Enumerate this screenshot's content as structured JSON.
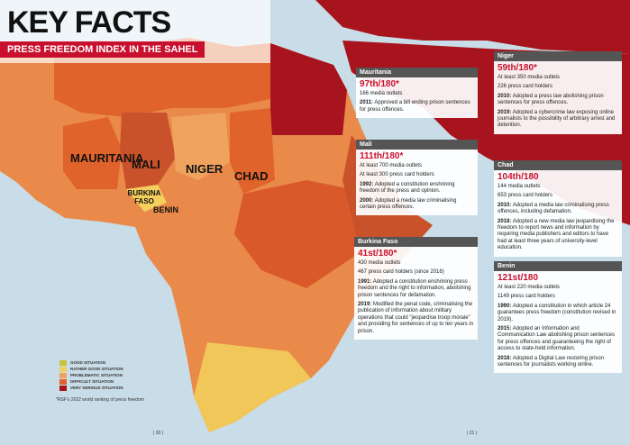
{
  "header": {
    "title": "KEY FACTS",
    "subtitle": "PRESS FREEDOM INDEX IN THE SAHEL"
  },
  "map_labels": [
    "MAURITANIA",
    "MALI",
    "NIGER",
    "CHAD",
    "BURKINA FASO",
    "BENIN"
  ],
  "legend": [
    "GOOD SITUATION",
    "RATHER GOOD SITUATION",
    "PROBLEMATIC SITUATION",
    "DIFFICULT SITUATION",
    "VERY SERIOUS SITUATION"
  ],
  "footnote": "*RSF's 2022 world ranking of press freedom",
  "page_numbers": [
    "| 20 |",
    "| 21 |"
  ],
  "cards": [
    {
      "country": "Mauritania",
      "rank": "97th/180*",
      "facts": [
        "166 media outlets"
      ],
      "events": [
        {
          "year": "2011:",
          "text": "Approved a bill ending prison sentences for press offences."
        }
      ]
    },
    {
      "country": "Mali",
      "rank": "111th/180*",
      "facts": [
        "At least 700 media outlets",
        "At least 300 press card holders"
      ],
      "events": [
        {
          "year": "1992:",
          "text": "Adopted a constitution enshrining freedom of the press and opinion."
        },
        {
          "year": "2000:",
          "text": "Adopted a media law criminalising certain press offences."
        }
      ]
    },
    {
      "country": "Burkina Faso",
      "rank": "41st/180*",
      "facts": [
        "430 media outlets",
        "467 press card holders (since 2016)"
      ],
      "events": [
        {
          "year": "1991:",
          "text": "Adopted a constitution enshrining press freedom and the right to information, abolishing prison sentences for defamation."
        },
        {
          "year": "2019:",
          "text": "Modified the penal code, criminalising the publication of information about military operations that could \"jeopardise troop morale\" and providing for sentences of up to ten years in prison."
        }
      ]
    },
    {
      "country": "Niger",
      "rank": "59th/180*",
      "facts": [
        "At least 350 media outlets",
        "226 press card holders"
      ],
      "events": [
        {
          "year": "2010:",
          "text": "Adopted a press law abolishing prison sentences for press offences."
        },
        {
          "year": "2019:",
          "text": "Adopted a cybercrime law exposing online journalists to the possibility of arbitrary arrest and detention."
        }
      ]
    },
    {
      "country": "Chad",
      "rank": "104th/180",
      "facts": [
        "144 media outlets",
        "653 press card holders"
      ],
      "events": [
        {
          "year": "2010:",
          "text": "Adopted a media law criminalising press offences, including defamation."
        },
        {
          "year": "2018:",
          "text": "Adopted a new media law jeopardising the freedom to report news and information by requiring media publishers and editors to have had at least three years of university-level education."
        }
      ]
    },
    {
      "country": "Benin",
      "rank": "121st/180",
      "facts": [
        "At least 220 media outlets",
        "1149 press card holders"
      ],
      "events": [
        {
          "year": "1990:",
          "text": "Adopted a constitution in which article 24 guarantees press freedom (constitution revised in 2019)."
        },
        {
          "year": "2015:",
          "text": "Adopted an Information and Communication Law abolishing prison sentences for press offences and guaranteeing the right of access to state-held information."
        },
        {
          "year": "2018:",
          "text": "Adopted a Digital Law restoring prison sentences for journalists working online."
        }
      ]
    }
  ]
}
